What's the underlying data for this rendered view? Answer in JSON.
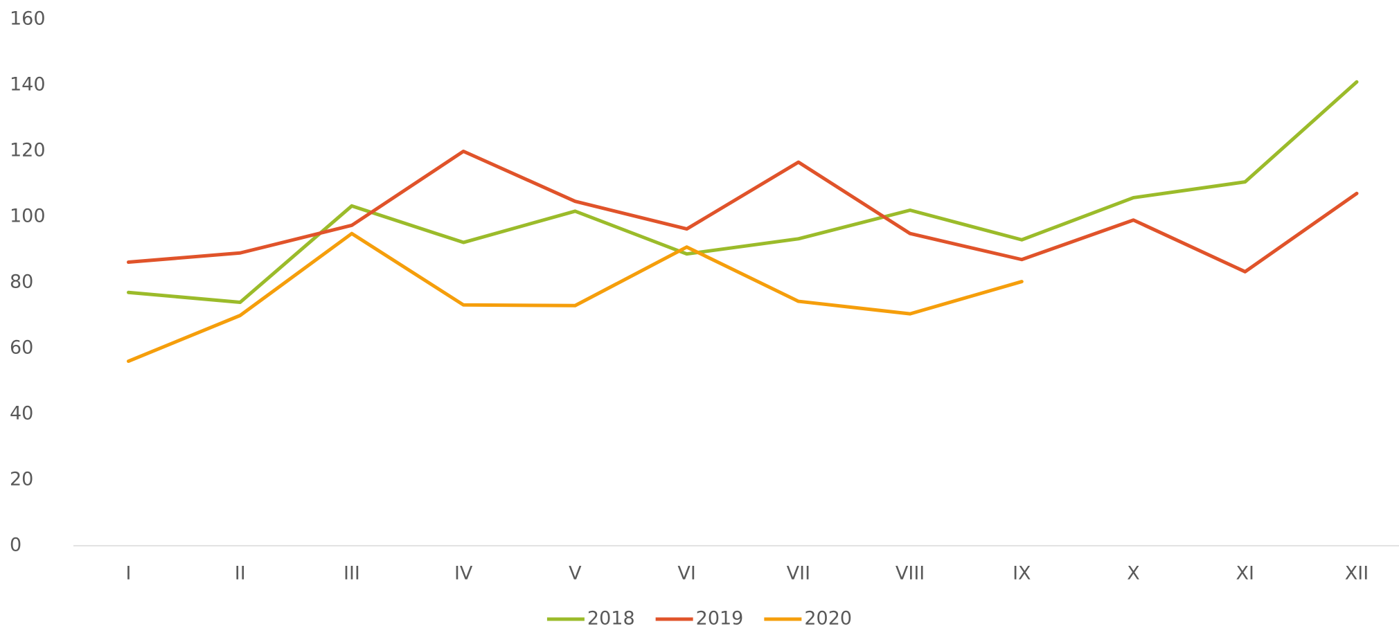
{
  "chart_data": {
    "type": "line",
    "categories": [
      "I",
      "II",
      "III",
      "IV",
      "V",
      "VI",
      "VII",
      "VIII",
      "IX",
      "X",
      "XI",
      "XII"
    ],
    "series": [
      {
        "name": "2018",
        "color": "#9bbb2a",
        "values": [
          77,
          74,
          103.3,
          92.2,
          101.7,
          88.7,
          93.3,
          102,
          93,
          105.8,
          110.6,
          141
        ]
      },
      {
        "name": "2019",
        "color": "#e0532a",
        "values": [
          86.2,
          89,
          97.4,
          119.9,
          104.7,
          96.3,
          116.6,
          94.9,
          87,
          99,
          83.3,
          107.1
        ]
      },
      {
        "name": "2020",
        "color": "#f59e0b",
        "values": [
          56.1,
          70,
          94.9,
          73.2,
          73,
          90.8,
          74.3,
          70.5,
          80.3,
          null,
          null,
          null
        ]
      }
    ],
    "ylim": [
      0,
      160
    ],
    "yticks": [
      0,
      20,
      40,
      60,
      80,
      100,
      120,
      140,
      160
    ],
    "grid": false,
    "legend": "bottom"
  }
}
